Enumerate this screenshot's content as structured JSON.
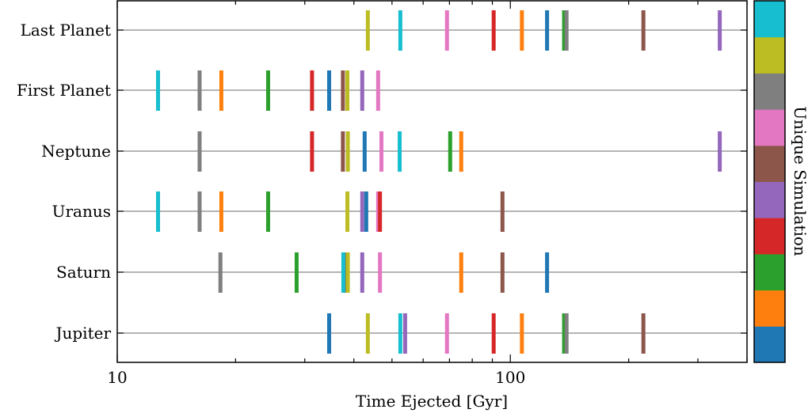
{
  "chart_data": {
    "type": "scatter",
    "marker": "vertical-line",
    "xlabel": "Time Ejected [Gyr]",
    "ylabel": "",
    "xscale": "log",
    "xlim": [
      10,
      400
    ],
    "xticks": [
      {
        "value": 10,
        "label": "10"
      },
      {
        "value": 100,
        "label": "100"
      }
    ],
    "grid": "horizontal",
    "colorbar": {
      "label": "Unique Simulation",
      "colors": [
        "#1f77b4",
        "#ff7f0e",
        "#2ca02c",
        "#d62728",
        "#9467bd",
        "#8c564b",
        "#e377c2",
        "#7f7f7f",
        "#bcbd22",
        "#17becf"
      ]
    },
    "categories": [
      "Last Planet",
      "First Planet",
      "Neptune",
      "Uranus",
      "Saturn",
      "Jupiter"
    ],
    "rows": [
      {
        "label": "Last Planet",
        "points": [
          {
            "sim": 8,
            "x": 43.4
          },
          {
            "sim": 9,
            "x": 52.5
          },
          {
            "sim": 6,
            "x": 69.0
          },
          {
            "sim": 3,
            "x": 90.7
          },
          {
            "sim": 1,
            "x": 107
          },
          {
            "sim": 0,
            "x": 124
          },
          {
            "sim": 2,
            "x": 137
          },
          {
            "sim": 7,
            "x": 139
          },
          {
            "sim": 5,
            "x": 218
          },
          {
            "sim": 4,
            "x": 341
          }
        ]
      },
      {
        "label": "First Planet",
        "points": [
          {
            "sim": 9,
            "x": 12.7
          },
          {
            "sim": 7,
            "x": 16.2
          },
          {
            "sim": 1,
            "x": 18.4
          },
          {
            "sim": 2,
            "x": 24.2
          },
          {
            "sim": 3,
            "x": 31.3
          },
          {
            "sim": 0,
            "x": 34.6
          },
          {
            "sim": 5,
            "x": 37.5
          },
          {
            "sim": 8,
            "x": 38.5
          },
          {
            "sim": 4,
            "x": 42.0
          },
          {
            "sim": 6,
            "x": 46.1
          }
        ]
      },
      {
        "label": "Neptune",
        "points": [
          {
            "sim": 7,
            "x": 16.2
          },
          {
            "sim": 3,
            "x": 31.3
          },
          {
            "sim": 5,
            "x": 37.5
          },
          {
            "sim": 8,
            "x": 38.6
          },
          {
            "sim": 0,
            "x": 42.6
          },
          {
            "sim": 6,
            "x": 47.0
          },
          {
            "sim": 9,
            "x": 52.3
          },
          {
            "sim": 2,
            "x": 70.3
          },
          {
            "sim": 1,
            "x": 75.0
          },
          {
            "sim": 4,
            "x": 341
          }
        ]
      },
      {
        "label": "Uranus",
        "points": [
          {
            "sim": 9,
            "x": 12.7
          },
          {
            "sim": 7,
            "x": 16.2
          },
          {
            "sim": 1,
            "x": 18.4
          },
          {
            "sim": 2,
            "x": 24.2
          },
          {
            "sim": 8,
            "x": 38.5
          },
          {
            "sim": 4,
            "x": 42.0
          },
          {
            "sim": 0,
            "x": 43.0
          },
          {
            "sim": 6,
            "x": 46.1
          },
          {
            "sim": 3,
            "x": 46.6
          },
          {
            "sim": 5,
            "x": 95.5
          }
        ]
      },
      {
        "label": "Saturn",
        "points": [
          {
            "sim": 7,
            "x": 18.3
          },
          {
            "sim": 2,
            "x": 28.6
          },
          {
            "sim": 5,
            "x": 38.0
          },
          {
            "sim": 9,
            "x": 37.6
          },
          {
            "sim": 8,
            "x": 38.6
          },
          {
            "sim": 4,
            "x": 42.0
          },
          {
            "sim": 6,
            "x": 46.6
          },
          {
            "sim": 1,
            "x": 75.0
          },
          {
            "sim": 5,
            "x": 95.5
          },
          {
            "sim": 0,
            "x": 124
          }
        ]
      },
      {
        "label": "Jupiter",
        "points": [
          {
            "sim": 0,
            "x": 34.6
          },
          {
            "sim": 8,
            "x": 43.4
          },
          {
            "sim": 9,
            "x": 52.5
          },
          {
            "sim": 4,
            "x": 54.0
          },
          {
            "sim": 6,
            "x": 69.0
          },
          {
            "sim": 3,
            "x": 90.7
          },
          {
            "sim": 1,
            "x": 107
          },
          {
            "sim": 2,
            "x": 137
          },
          {
            "sim": 7,
            "x": 139
          },
          {
            "sim": 5,
            "x": 218
          }
        ]
      }
    ]
  }
}
